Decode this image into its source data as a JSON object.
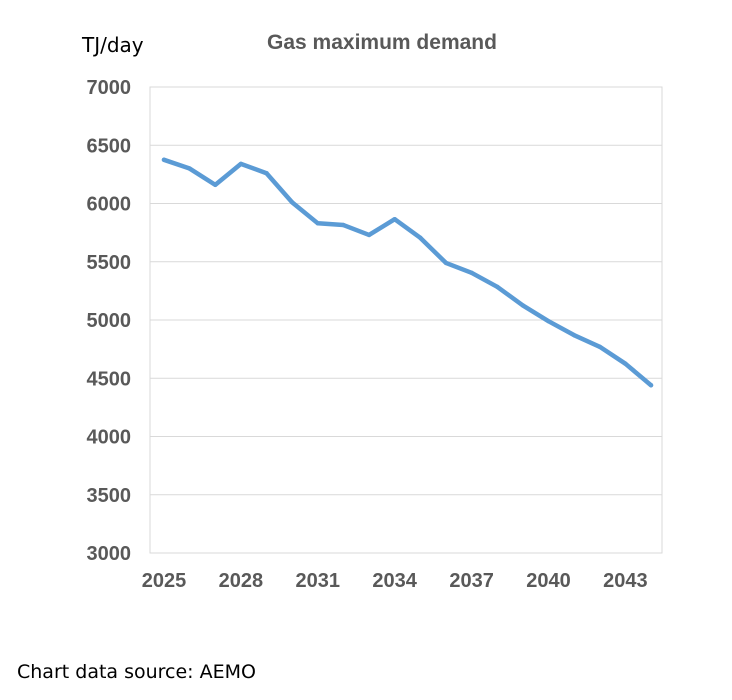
{
  "chart_data": {
    "type": "line",
    "title": "Gas maximum demand",
    "ylabel": "TJ/day",
    "xlabel": "",
    "ylim": [
      3000,
      7000
    ],
    "yticks": [
      3000,
      3500,
      4000,
      4500,
      5000,
      5500,
      6000,
      6500,
      7000
    ],
    "xticks": [
      "2025",
      "2028",
      "2031",
      "2034",
      "2037",
      "2040",
      "2043"
    ],
    "x": [
      2025,
      2026,
      2027,
      2028,
      2029,
      2030,
      2031,
      2032,
      2033,
      2034,
      2035,
      2036,
      2037,
      2038,
      2039,
      2040,
      2041,
      2042,
      2043,
      2044
    ],
    "series": [
      {
        "values": [
          6375,
          6300,
          6160,
          6340,
          6260,
          6010,
          5830,
          5815,
          5730,
          5865,
          5705,
          5490,
          5405,
          5285,
          5125,
          4990,
          4870,
          4770,
          4625,
          4440
        ],
        "color": "#5B9BD5"
      }
    ],
    "grid": true
  },
  "source_note": "Chart data source: AEMO"
}
